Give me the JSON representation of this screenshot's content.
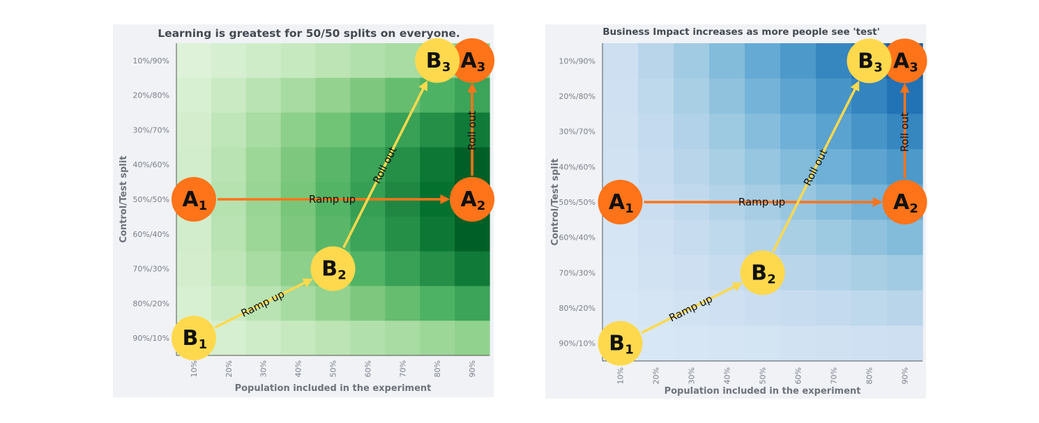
{
  "chart_data": [
    {
      "type": "heatmap",
      "title": "Learning is greatest for 50/50 splits on everyone.",
      "xlabel": "Population included in the experiment",
      "ylabel": "Control/Test split",
      "x_categories": [
        "10%",
        "20%",
        "30%",
        "40%",
        "50%",
        "60%",
        "70%",
        "80%",
        "90%"
      ],
      "y_categories": [
        "10%/90%",
        "20%/80%",
        "30%/70%",
        "40%/60%",
        "50%/50%",
        "60%/40%",
        "70%/30%",
        "80%/20%",
        "90%/10%"
      ],
      "values_by_y_row": [
        [
          0.9,
          1.8,
          2.7,
          3.6,
          4.5,
          5.4,
          6.3,
          7.2,
          8.1
        ],
        [
          1.6,
          3.2,
          4.8,
          6.4,
          8.0,
          9.6,
          11.2,
          12.8,
          14.4
        ],
        [
          2.1,
          4.2,
          6.3,
          8.4,
          10.5,
          12.6,
          14.7,
          16.8,
          18.9
        ],
        [
          2.4,
          4.8,
          7.2,
          9.6,
          12.0,
          14.4,
          16.8,
          19.2,
          21.6
        ],
        [
          2.5,
          5.0,
          7.5,
          10.0,
          12.5,
          15.0,
          17.5,
          20.0,
          22.5
        ],
        [
          2.4,
          4.8,
          7.2,
          9.6,
          12.0,
          14.4,
          16.8,
          19.2,
          21.6
        ],
        [
          2.1,
          4.2,
          6.3,
          8.4,
          10.5,
          12.6,
          14.7,
          16.8,
          18.9
        ],
        [
          1.6,
          3.2,
          4.8,
          6.4,
          8.0,
          9.6,
          11.2,
          12.8,
          14.4
        ],
        [
          0.9,
          1.8,
          2.7,
          3.6,
          4.5,
          5.4,
          6.3,
          7.2,
          8.1
        ]
      ],
      "colorscale": "greens",
      "vmax": 22.5
    },
    {
      "type": "heatmap",
      "title": "Business Impact increases as more people see 'test'",
      "xlabel": "Population included in the experiment",
      "ylabel": "Control/Test split",
      "x_categories": [
        "10%",
        "20%",
        "30%",
        "40%",
        "50%",
        "60%",
        "70%",
        "80%",
        "90%"
      ],
      "y_categories": [
        "10%/90%",
        "20%/80%",
        "30%/70%",
        "40%/60%",
        "50%/50%",
        "60%/40%",
        "70%/30%",
        "80%/20%",
        "90%/10%"
      ],
      "values_by_y_row": [
        [
          9,
          18,
          27,
          36,
          45,
          54,
          63,
          72,
          81
        ],
        [
          8,
          16,
          24,
          32,
          40,
          48,
          56,
          64,
          72
        ],
        [
          7,
          14,
          21,
          28,
          35,
          42,
          49,
          56,
          63
        ],
        [
          6,
          12,
          18,
          24,
          30,
          36,
          42,
          48,
          54
        ],
        [
          5,
          10,
          15,
          20,
          25,
          30,
          35,
          40,
          45
        ],
        [
          4,
          8,
          12,
          16,
          20,
          24,
          28,
          32,
          36
        ],
        [
          3,
          6,
          9,
          12,
          15,
          18,
          21,
          24,
          27
        ],
        [
          2,
          4,
          6,
          8,
          10,
          12,
          14,
          16,
          18
        ],
        [
          1,
          2,
          3,
          4,
          5,
          6,
          7,
          8,
          9
        ]
      ],
      "colorscale": "blues",
      "vmax": 81
    }
  ],
  "annotations": {
    "nodes": [
      {
        "letter": "A",
        "sub": "1",
        "x": "10%",
        "y": "50%/50%",
        "color": "#ff7319"
      },
      {
        "letter": "A",
        "sub": "2",
        "x": "90%",
        "y": "50%/50%",
        "color": "#ff7319"
      },
      {
        "letter": "A",
        "sub": "3",
        "x": "90%",
        "y": "10%/90%",
        "color": "#ff7319"
      },
      {
        "letter": "B",
        "sub": "1",
        "x": "10%",
        "y": "90%/10%",
        "color": "#ffd94d"
      },
      {
        "letter": "B",
        "sub": "2",
        "x": "50%",
        "y": "70%/30%",
        "color": "#ffd94d"
      },
      {
        "letter": "B",
        "sub": "3",
        "x": "80%",
        "y": "10%/90%",
        "color": "#ffd94d"
      }
    ],
    "arrows": [
      {
        "from": 0,
        "to": 1,
        "label": "Ramp up",
        "color": "#ff7319"
      },
      {
        "from": 1,
        "to": 2,
        "label": "Roll out",
        "color": "#ff7319"
      },
      {
        "from": 3,
        "to": 4,
        "label": "Ramp up",
        "color": "#ffd94d"
      },
      {
        "from": 4,
        "to": 5,
        "label": "Roll out",
        "color": "#ffd94d"
      }
    ]
  }
}
